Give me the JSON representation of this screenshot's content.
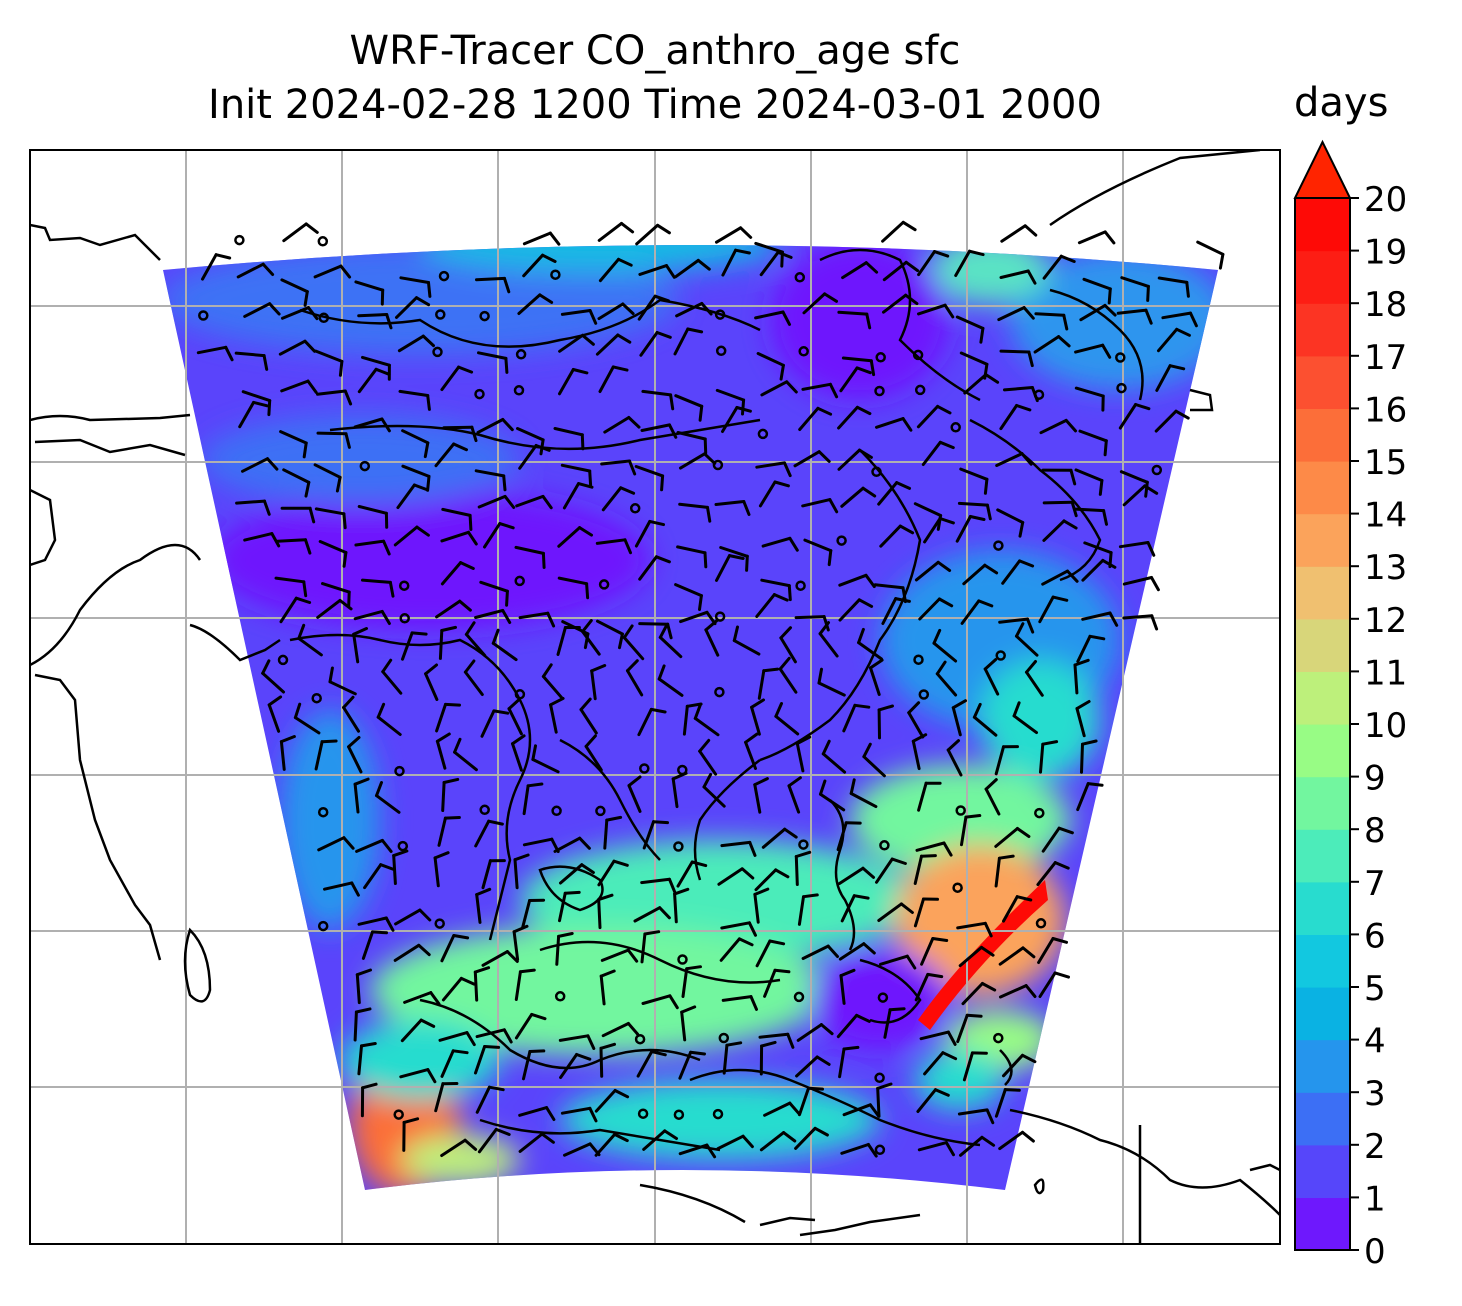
{
  "chart_data": {
    "type": "heatmap",
    "title_line1": "WRF-Tracer CO_anthro_age sfc",
    "title_line2": "Init 2024-02-28 1200 Time 2024-03-01 2000",
    "variable": "CO_anthro_age",
    "level": "sfc",
    "init_time": "2024-02-28 1200",
    "valid_time": "2024-03-01 2000",
    "colorbar": {
      "label": "days",
      "min": 0,
      "max": 20,
      "step": 1,
      "extend": "max",
      "ticks": [
        0,
        1,
        2,
        3,
        4,
        5,
        6,
        7,
        8,
        9,
        10,
        11,
        12,
        13,
        14,
        15,
        16,
        17,
        18,
        19,
        20
      ],
      "colormap": "rainbow",
      "colors": [
        "#6e18fd",
        "#5646fa",
        "#3c6ff5",
        "#2595ed",
        "#0ab2e3",
        "#12c8e0",
        "#28dccf",
        "#4cecba",
        "#72f69f",
        "#98fc85",
        "#bdf07b",
        "#d8d67a",
        "#f0c070",
        "#fba35b",
        "#fd8a48",
        "#fc6e39",
        "#fc5030",
        "#fc3423",
        "#fd1d14",
        "#fe0a06"
      ],
      "over_color": "#ff2400"
    },
    "grid": true,
    "overlays": [
      "coastlines",
      "country borders",
      "wind barbs"
    ]
  },
  "colors": {
    "frame": "#000000",
    "gridline": "#b0b0b0",
    "coast": "#000000"
  }
}
